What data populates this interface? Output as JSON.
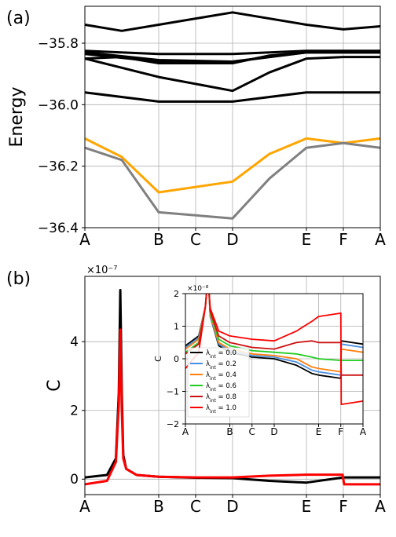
{
  "chart_data": [
    {
      "type": "line",
      "panel_label": "(a)",
      "ylabel": "Energy",
      "ylim": [
        -36.4,
        -35.68
      ],
      "yticks": [
        -35.8,
        -36.0,
        -36.2,
        -36.4
      ],
      "ytick_labels": [
        "−35.8",
        "−36.0",
        "−36.2",
        "−36.4"
      ],
      "categories": [
        "A",
        "B",
        "C",
        "D",
        "E",
        "F",
        "A"
      ],
      "x": [
        0,
        1,
        1.5,
        2,
        3,
        3.5,
        4
      ],
      "grid": true,
      "series": [
        {
          "color": "#000000",
          "x": [
            0,
            0.5,
            1,
            2,
            3,
            3.5,
            4
          ],
          "values": [
            -35.74,
            -35.76,
            -35.74,
            -35.7,
            -35.74,
            -35.755,
            -35.745
          ]
        },
        {
          "color": "#000000",
          "x": [
            0,
            1,
            2,
            3,
            4
          ],
          "values": [
            -35.825,
            -35.835,
            -35.835,
            -35.825,
            -35.825
          ]
        },
        {
          "color": "#000000",
          "x": [
            0,
            1,
            2,
            3,
            4
          ],
          "values": [
            -35.83,
            -35.855,
            -35.86,
            -35.83,
            -35.83
          ]
        },
        {
          "color": "#000000",
          "x": [
            0,
            1,
            2,
            3,
            4
          ],
          "values": [
            -35.835,
            -35.86,
            -35.86,
            -35.83,
            -35.83
          ]
        },
        {
          "color": "#000000",
          "x": [
            0,
            0.5,
            1,
            2,
            2.5,
            3,
            3.5,
            4
          ],
          "values": [
            -35.85,
            -35.845,
            -35.865,
            -35.865,
            -35.84,
            -35.83,
            -35.83,
            -35.83
          ]
        },
        {
          "color": "#000000",
          "x": [
            0,
            1,
            2,
            2.5,
            3,
            3.5,
            4
          ],
          "values": [
            -35.85,
            -35.91,
            -35.955,
            -35.895,
            -35.85,
            -35.845,
            -35.845
          ]
        },
        {
          "color": "#000000",
          "x": [
            0,
            1,
            2,
            3,
            4
          ],
          "values": [
            -35.96,
            -35.99,
            -35.99,
            -35.96,
            -35.96
          ]
        },
        {
          "color": "#ffa500",
          "x": [
            0,
            0.5,
            1,
            2,
            2.5,
            3,
            3.5,
            4
          ],
          "values": [
            -36.11,
            -36.17,
            -36.285,
            -36.25,
            -36.16,
            -36.11,
            -36.125,
            -36.11
          ]
        },
        {
          "color": "#808080",
          "x": [
            0,
            0.5,
            1,
            2,
            2.5,
            3,
            3.5,
            4
          ],
          "values": [
            -36.14,
            -36.18,
            -36.35,
            -36.37,
            -36.24,
            -36.14,
            -36.125,
            -36.14
          ]
        }
      ]
    },
    {
      "type": "line",
      "panel_label": "(b)",
      "ylabel": "C",
      "scale_label": "×10⁻⁷",
      "ylim": [
        -0.45,
        5.9
      ],
      "yticks": [
        0,
        2,
        4
      ],
      "ytick_labels": [
        "0",
        "2",
        "4"
      ],
      "categories": [
        "A",
        "B",
        "C",
        "D",
        "E",
        "F",
        "A"
      ],
      "x": [
        0,
        1,
        1.5,
        2,
        3,
        3.5,
        4
      ],
      "grid": true,
      "series": [
        {
          "color": "#000000",
          "x": [
            0,
            0.3,
            0.42,
            0.46,
            0.48,
            0.5,
            0.52,
            0.56,
            0.7,
            1,
            1.5,
            2,
            2.5,
            3,
            3.5,
            4
          ],
          "values": [
            0.05,
            0.12,
            0.6,
            2.5,
            5.5,
            2.5,
            0.7,
            0.3,
            0.12,
            0.07,
            0.04,
            0.03,
            -0.05,
            -0.1,
            0.05,
            0.05
          ]
        },
        {
          "color": "#ff0000",
          "x": [
            0,
            0.3,
            0.42,
            0.46,
            0.48,
            0.5,
            0.52,
            0.56,
            0.7,
            1,
            1.5,
            2,
            2.5,
            3,
            3.49,
            3.51,
            4
          ],
          "values": [
            -0.15,
            -0.05,
            0.5,
            2.2,
            4.35,
            2.0,
            0.6,
            0.3,
            0.12,
            0.07,
            0.05,
            0.05,
            0.1,
            0.13,
            0.13,
            -0.15,
            -0.15
          ]
        }
      ]
    },
    {
      "type": "line",
      "panel_label": "inset",
      "ylabel": "C",
      "scale_label": "×10⁻⁸",
      "ylim": [
        -2,
        2
      ],
      "yticks": [
        2,
        1,
        0,
        -1,
        -2
      ],
      "ytick_labels": [
        "2",
        "1",
        "0",
        "−1",
        "−2"
      ],
      "categories": [
        "A",
        "B",
        "C",
        "D",
        "E",
        "F",
        "A"
      ],
      "x": [
        0,
        1,
        1.5,
        2,
        3,
        3.5,
        4
      ],
      "grid": true,
      "legend": "center-left",
      "series": [
        {
          "name": "λ_int = 0.0",
          "color": "#000000",
          "x": [
            0,
            0.3,
            0.45,
            0.48,
            0.53,
            0.56,
            0.75,
            1,
            1.5,
            2,
            2.5,
            2.85,
            3,
            3.5,
            3.51,
            4
          ],
          "values": [
            0.4,
            0.7,
            1.6,
            2.1,
            2.1,
            1.3,
            0.4,
            0.2,
            0.05,
            0.0,
            -0.2,
            -0.45,
            -0.5,
            -0.6,
            0.55,
            0.45
          ]
        },
        {
          "name": "λ_int = 0.2",
          "color": "#4a90e2",
          "x": [
            0,
            0.3,
            0.45,
            0.48,
            0.53,
            0.56,
            0.75,
            1,
            1.5,
            2,
            2.5,
            2.85,
            3,
            3.5,
            3.51,
            4
          ],
          "values": [
            0.35,
            0.65,
            1.6,
            2.1,
            2.1,
            1.3,
            0.45,
            0.25,
            0.1,
            0.05,
            -0.1,
            -0.35,
            -0.4,
            -0.5,
            0.45,
            0.35
          ]
        },
        {
          "name": "λ_int = 0.4",
          "color": "#ff7f0e",
          "x": [
            0,
            0.3,
            0.45,
            0.48,
            0.53,
            0.56,
            0.75,
            1,
            1.5,
            2,
            2.5,
            2.85,
            3,
            3.5,
            3.51,
            4
          ],
          "values": [
            0.3,
            0.6,
            1.6,
            2.1,
            2.1,
            1.35,
            0.5,
            0.3,
            0.15,
            0.1,
            0.0,
            -0.25,
            -0.3,
            -0.4,
            0.3,
            0.2
          ]
        },
        {
          "name": "λ_int = 0.6",
          "color": "#22cc22",
          "x": [
            0,
            0.3,
            0.45,
            0.48,
            0.53,
            0.56,
            0.75,
            1,
            1.5,
            2,
            2.5,
            2.85,
            3,
            3.5,
            4
          ],
          "values": [
            0.2,
            0.5,
            1.6,
            2.1,
            2.1,
            1.4,
            0.6,
            0.4,
            0.25,
            0.2,
            0.15,
            0.05,
            0.0,
            -0.05,
            -0.05
          ]
        },
        {
          "name": "λ_int = 0.8",
          "color": "#cc1111",
          "x": [
            0,
            0.3,
            0.45,
            0.48,
            0.53,
            0.56,
            0.75,
            1,
            1.5,
            2,
            2.5,
            2.85,
            3,
            3.5,
            3.51,
            4
          ],
          "values": [
            0.15,
            0.45,
            1.6,
            2.1,
            2.1,
            1.45,
            0.7,
            0.5,
            0.35,
            0.3,
            0.5,
            0.55,
            0.5,
            0.5,
            -0.5,
            -0.5
          ]
        },
        {
          "name": "λ_int = 1.0",
          "color": "#ff0000",
          "x": [
            0,
            0.3,
            0.45,
            0.48,
            0.53,
            0.56,
            0.75,
            1,
            1.5,
            2,
            2.5,
            2.85,
            3,
            3.5,
            3.51,
            4
          ],
          "values": [
            -0.3,
            0.2,
            1.6,
            2.1,
            2.1,
            1.55,
            0.85,
            0.7,
            0.6,
            0.55,
            0.85,
            1.15,
            1.3,
            1.4,
            -1.4,
            -1.3
          ]
        }
      ]
    }
  ]
}
